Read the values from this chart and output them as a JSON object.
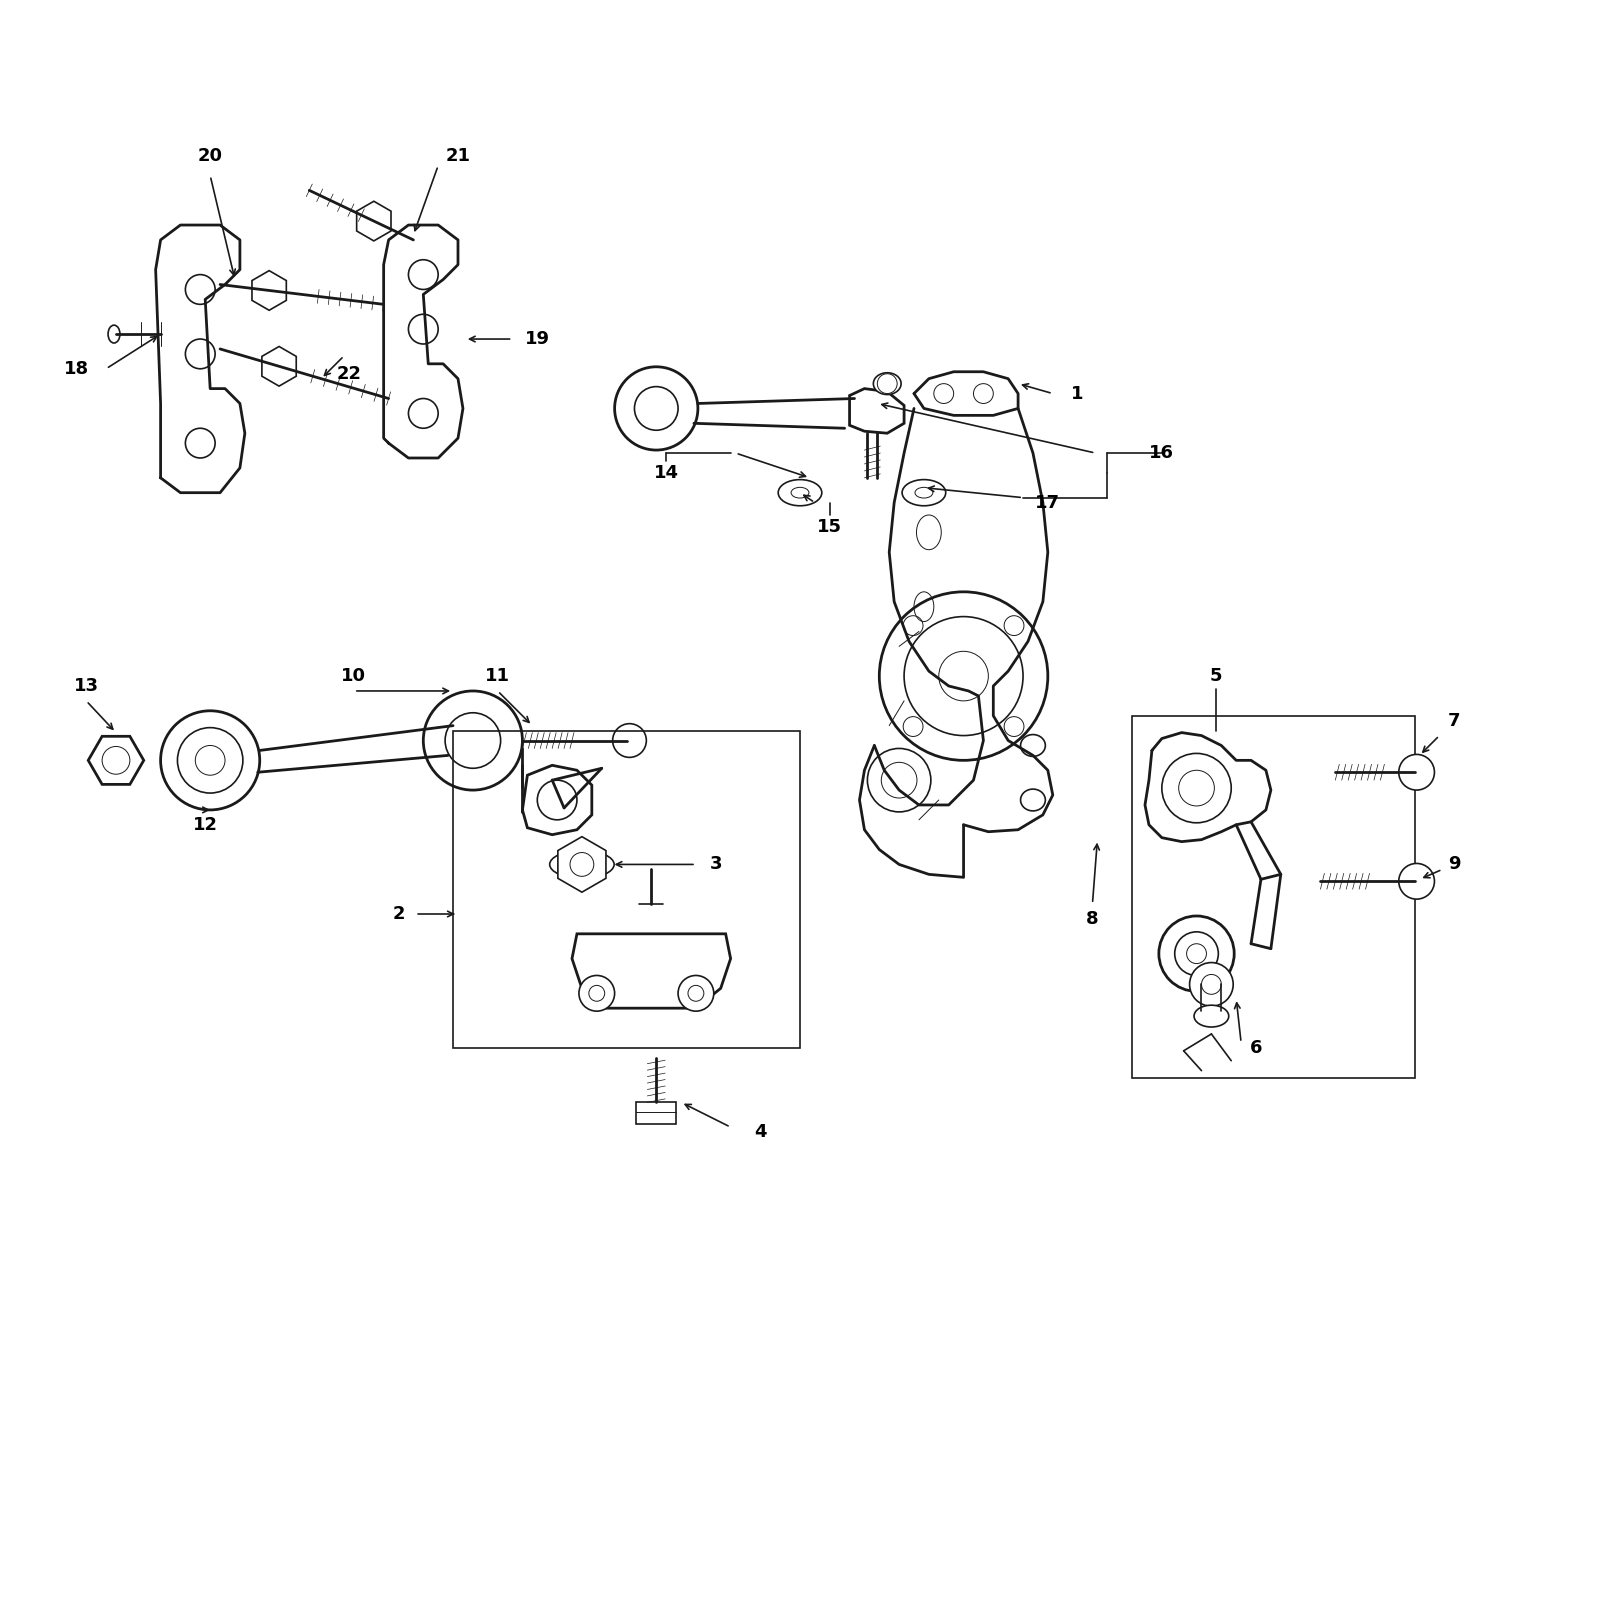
{
  "background_color": "#ffffff",
  "line_color": "#1a1a1a",
  "fig_width": 16,
  "fig_height": 16,
  "xlim": [
    0,
    16
  ],
  "ylim": [
    0,
    16
  ],
  "label_fontsize": 13,
  "label_bold": true
}
